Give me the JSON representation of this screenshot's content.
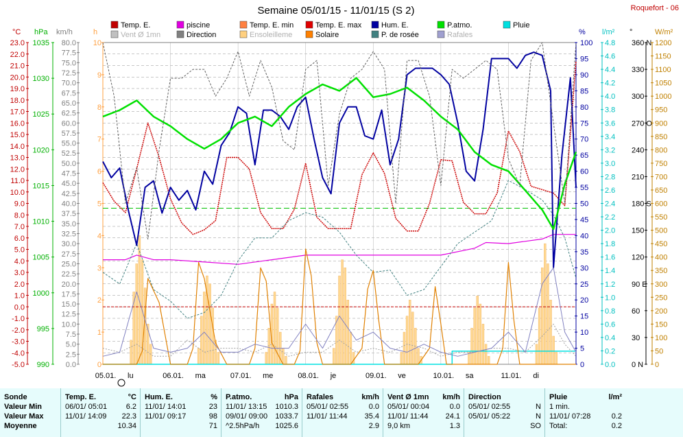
{
  "chart_data": {
    "type": "line",
    "title": "Semaine 05/01/15 - 11/01/15 (S 2)",
    "station": "Roquefort - 06",
    "x_ticks": [
      "05.01.",
      "lu",
      "06.01.",
      "ma",
      "07.01.",
      "me",
      "08.01.",
      "je",
      "09.01.",
      "ve",
      "10.01.",
      "sa",
      "11.01.",
      "di"
    ],
    "axes": {
      "temp": {
        "label": "°C",
        "color": "#c00000",
        "min": -5,
        "max": 23,
        "step": 1,
        "ticks": [
          "23.0",
          "22.0",
          "21.0",
          "20.0",
          "19.0",
          "18.0",
          "17.0",
          "16.0",
          "15.0",
          "14.0",
          "13.0",
          "12.0",
          "11.0",
          "10.0",
          "9.0",
          "8.0",
          "7.0",
          "6.0",
          "5.0",
          "4.0",
          "3.0",
          "2.0",
          "1.0",
          "0.0",
          "-1.0",
          "-2.0",
          "-3.0",
          "-4.0",
          "-5.0"
        ]
      },
      "press": {
        "label": "hPa",
        "color": "#00b000",
        "ticks": [
          "1035",
          "1030",
          "1025",
          "1020",
          "1015",
          "1010",
          "1005",
          "1000",
          "995",
          "990"
        ]
      },
      "wind": {
        "label": "km/h",
        "color": "#808080",
        "ticks": [
          "80.0",
          "77.5",
          "75.0",
          "72.5",
          "70.0",
          "67.5",
          "65.0",
          "62.5",
          "60.0",
          "57.5",
          "55.0",
          "52.5",
          "50.0",
          "47.5",
          "45.0",
          "42.5",
          "40.0",
          "37.5",
          "35.0",
          "32.5",
          "30.0",
          "27.5",
          "25.0",
          "22.5",
          "20.0",
          "17.5",
          "15.0",
          "12.5",
          "10.0",
          "7.5",
          "5.0",
          "2.5",
          "0.0"
        ]
      },
      "sun": {
        "label": "h",
        "color": "#ffa040",
        "ticks": [
          "10",
          "9",
          "8",
          "7",
          "6",
          "5",
          "4",
          "3",
          "2",
          "1",
          "0"
        ]
      },
      "hum": {
        "label": "%",
        "color": "#0000a0",
        "ticks": [
          "100",
          "95",
          "90",
          "85",
          "80",
          "75",
          "70",
          "65",
          "60",
          "55",
          "50",
          "45",
          "40",
          "35",
          "30",
          "25",
          "20",
          "15",
          "10",
          "5",
          "0"
        ]
      },
      "rain": {
        "label": "l/m²",
        "color": "#00c0c0",
        "ticks": [
          "4.8",
          "4.6",
          "4.4",
          "4.2",
          "4.0",
          "3.8",
          "3.6",
          "3.4",
          "3.2",
          "3.0",
          "2.8",
          "2.6",
          "2.4",
          "2.2",
          "2.0",
          "1.8",
          "1.6",
          "1.4",
          "1.2",
          "1.0",
          "0.8",
          "0.6",
          "0.4",
          "0.2",
          "0.0"
        ]
      },
      "dir": {
        "label": "°",
        "color": "#000000",
        "ticks": [
          "360 N",
          "330",
          "300",
          "270 O",
          "240",
          "210",
          "180 S",
          "150",
          "120",
          "90 E",
          "60",
          "30",
          "0 N"
        ]
      },
      "solar": {
        "label": "W/m²",
        "color": "#c08000",
        "ticks": [
          "1200",
          "1150",
          "1100",
          "1050",
          "1000",
          "950",
          "900",
          "850",
          "800",
          "750",
          "700",
          "650",
          "600",
          "550",
          "500",
          "450",
          "400",
          "350",
          "300",
          "250",
          "200",
          "150",
          "100",
          "50",
          "0"
        ]
      }
    },
    "legend": [
      {
        "name": "Temp. E.",
        "color": "#c00000"
      },
      {
        "name": "piscine",
        "color": "#e000e0"
      },
      {
        "name": "Temp. E. min",
        "color": "#ff8040"
      },
      {
        "name": "Temp. E. max",
        "color": "#e00000"
      },
      {
        "name": "Hum. E.",
        "color": "#0000a0"
      },
      {
        "name": "P.atmo.",
        "color": "#00e000"
      },
      {
        "name": "Pluie",
        "color": "#00e0e0"
      },
      {
        "name": "Vent Ø 1mn",
        "color": "#c0c0c0"
      },
      {
        "name": "Direction",
        "color": "#808080"
      },
      {
        "name": "Ensoleilleme",
        "color": "#ffd080"
      },
      {
        "name": "Solaire",
        "color": "#ff8000"
      },
      {
        "name": "P. de rosée",
        "color": "#408080"
      },
      {
        "name": "Rafales",
        "color": "#a0a0d0"
      }
    ],
    "series": [
      {
        "name": "Temp. E.",
        "axis": "temp",
        "color": "#cc0000",
        "dash": "2,1",
        "width": 1.5,
        "x": [
          0,
          4,
          8,
          12,
          16,
          20,
          24,
          28,
          32,
          36,
          40,
          44,
          48,
          52,
          56,
          60,
          64,
          68,
          72,
          76,
          80,
          84,
          88,
          92,
          96,
          100,
          104,
          108,
          112,
          116,
          120,
          124,
          128,
          132,
          136,
          140,
          144,
          148,
          152,
          156,
          160,
          164,
          168
        ],
        "y": [
          10.8,
          9.2,
          8.2,
          12,
          16,
          13,
          9.4,
          7.3,
          6.3,
          6.7,
          7.5,
          13,
          13,
          12,
          8.2,
          6.8,
          6.8,
          8.5,
          12.5,
          7.8,
          6.8,
          6.8,
          6.8,
          11.5,
          13.4,
          11.6,
          7.7,
          6.6,
          6.6,
          9,
          12.8,
          12.7,
          9.1,
          8.1,
          8.1,
          9.9,
          15.3,
          13.5,
          10.5,
          10.2,
          9.9,
          8.8,
          21.4
        ]
      },
      {
        "name": "piscine",
        "axis": "temp",
        "color": "#e000e0",
        "width": 1.2,
        "x": [
          0,
          8,
          12,
          18,
          24,
          36,
          48,
          60,
          72,
          84,
          96,
          108,
          120,
          132,
          136,
          144,
          156,
          160,
          168
        ],
        "y": [
          4.1,
          4.1,
          4.5,
          4.1,
          4.1,
          3.9,
          3.7,
          4.1,
          4.5,
          4.5,
          4.5,
          4.5,
          4.5,
          5.1,
          5.6,
          5.5,
          5.9,
          6.3,
          6.3
        ]
      },
      {
        "name": "P. de rosée",
        "axis": "temp",
        "color": "#408080",
        "dash": "3,2",
        "width": 1,
        "x": [
          0,
          6,
          12,
          18,
          24,
          30,
          36,
          42,
          48,
          54,
          60,
          66,
          72,
          78,
          84,
          90,
          96,
          102,
          108,
          114,
          120,
          126,
          132,
          138,
          144,
          150,
          156,
          160,
          164,
          168
        ],
        "y": [
          3,
          2,
          5.5,
          1.5,
          0.5,
          -1,
          -0.5,
          1,
          4,
          6,
          6,
          7.5,
          8.2,
          7.8,
          6.5,
          4.5,
          3,
          3.2,
          1,
          1.5,
          3.5,
          5.5,
          6.5,
          7.5,
          11,
          10.2,
          9.3,
          8,
          6,
          2.5
        ]
      },
      {
        "name": "Hum. E.",
        "axis": "hum",
        "color": "#0000a0",
        "width": 2,
        "x": [
          0,
          3,
          6,
          9,
          12,
          15,
          18,
          21,
          24,
          27,
          30,
          33,
          36,
          39,
          42,
          45,
          48,
          51,
          54,
          57,
          60,
          63,
          66,
          69,
          72,
          75,
          78,
          81,
          84,
          87,
          90,
          93,
          96,
          99,
          102,
          105,
          108,
          111,
          114,
          117,
          120,
          123,
          126,
          129,
          132,
          135,
          138,
          141,
          144,
          147,
          150,
          153,
          156,
          159,
          160,
          163,
          166,
          168
        ],
        "y": [
          63,
          58,
          61,
          48,
          37,
          55,
          57,
          47,
          55,
          51,
          54,
          48,
          60,
          56,
          68,
          72,
          80,
          78,
          62,
          79,
          79,
          77,
          73,
          80,
          83,
          70,
          58,
          53,
          75,
          80,
          80,
          71,
          70,
          79,
          62,
          70,
          90,
          92,
          92,
          92,
          90,
          87,
          75,
          60,
          57,
          73,
          95,
          95,
          95,
          92,
          96,
          97,
          96,
          85,
          30,
          65,
          89,
          55
        ]
      },
      {
        "name": "P.atmo.",
        "axis": "hum",
        "color": "#00e000",
        "width": 2.5,
        "x": [
          0,
          6,
          12,
          18,
          24,
          30,
          36,
          42,
          48,
          54,
          60,
          66,
          72,
          78,
          84,
          90,
          96,
          102,
          108,
          114,
          120,
          126,
          132,
          138,
          144,
          150,
          156,
          160,
          164,
          168
        ],
        "y": [
          77,
          79,
          82,
          77,
          74,
          70,
          67,
          70,
          75,
          77,
          74,
          80,
          84,
          87,
          85,
          89,
          83,
          84,
          86,
          82,
          77,
          73,
          66,
          62,
          60,
          54,
          48,
          42,
          56,
          66
        ]
      },
      {
        "name": "Pluie",
        "axis": "rain",
        "color": "#00e0e0",
        "width": 1.5,
        "x": [
          0,
          124,
          124,
          168
        ],
        "y": [
          0,
          0,
          0.2,
          0.2
        ]
      },
      {
        "name": "Vent Ø 1mn",
        "axis": "wind",
        "color": "#a0a0a0",
        "dash": "2,2",
        "width": 1,
        "x": [
          0,
          6,
          12,
          18,
          24,
          30,
          36,
          42,
          48,
          54,
          60,
          66,
          72,
          78,
          84,
          90,
          96,
          102,
          108,
          114,
          120,
          126,
          132,
          138,
          144,
          150,
          156,
          160,
          164,
          168
        ],
        "y": [
          4,
          3,
          5,
          2,
          2,
          6,
          3,
          4,
          4,
          3,
          5,
          2,
          3,
          3,
          6,
          3,
          4,
          3,
          5,
          4,
          2,
          3,
          3,
          4,
          4,
          3,
          7,
          10,
          5,
          2
        ]
      },
      {
        "name": "Direction",
        "axis": "dir",
        "color": "#606060",
        "dash": "3,2",
        "width": 1,
        "x": [
          0,
          4,
          8,
          12,
          16,
          20,
          24,
          28,
          32,
          36,
          40,
          44,
          48,
          52,
          56,
          60,
          64,
          68,
          72,
          76,
          80,
          84,
          88,
          92,
          96,
          100,
          104,
          108,
          112,
          116,
          120,
          124,
          128,
          132,
          136,
          140,
          144,
          148,
          152,
          156,
          160,
          164,
          168
        ],
        "y": [
          360,
          300,
          180,
          220,
          140,
          240,
          320,
          320,
          330,
          330,
          300,
          320,
          350,
          300,
          340,
          310,
          250,
          240,
          330,
          340,
          200,
          280,
          320,
          330,
          350,
          330,
          180,
          340,
          340,
          300,
          200,
          330,
          320,
          330,
          340,
          330,
          230,
          200,
          340,
          360,
          270,
          180,
          360
        ]
      },
      {
        "name": "Solaire",
        "axis": "solar",
        "color": "#e08000",
        "width": 1.2,
        "x": [
          0,
          4,
          8,
          10,
          12,
          14,
          16,
          20,
          24,
          26,
          28,
          30,
          32,
          34,
          36,
          40,
          44,
          48,
          50,
          52,
          54,
          56,
          58,
          60,
          64,
          68,
          70,
          72,
          74,
          76,
          78,
          80,
          84,
          88,
          92,
          94,
          96,
          98,
          100,
          102,
          104,
          108,
          112,
          116,
          118,
          120,
          122,
          124,
          126,
          128,
          132,
          136,
          140,
          142,
          144,
          146,
          148,
          150,
          152,
          168
        ],
        "y": [
          0,
          0,
          0,
          0,
          0,
          50,
          320,
          230,
          0,
          0,
          0,
          0,
          60,
          380,
          320,
          80,
          0,
          0,
          0,
          0,
          60,
          360,
          310,
          80,
          0,
          0,
          50,
          430,
          330,
          80,
          0,
          0,
          0,
          0,
          60,
          280,
          350,
          160,
          0,
          0,
          0,
          0,
          0,
          60,
          290,
          150,
          0,
          0,
          0,
          0,
          0,
          0,
          0,
          60,
          380,
          160,
          0,
          0,
          0,
          0
        ]
      },
      {
        "name": "Rafales",
        "axis": "wind",
        "color": "#8080c0",
        "width": 1,
        "x": [
          0,
          6,
          12,
          18,
          24,
          30,
          36,
          42,
          48,
          54,
          60,
          66,
          72,
          78,
          84,
          90,
          96,
          102,
          108,
          114,
          120,
          126,
          132,
          138,
          144,
          150,
          156,
          160,
          164,
          168
        ],
        "y": [
          2,
          3,
          18,
          4,
          3,
          4,
          8,
          3,
          3,
          5,
          4,
          4,
          10,
          4,
          12,
          6,
          8,
          4,
          3,
          5,
          3,
          2,
          3,
          4,
          8,
          3,
          20,
          24,
          8,
          3
        ]
      }
    ],
    "sun_bars": [
      {
        "day": 0,
        "peaks": [
          6,
          18,
          25,
          32,
          26,
          19,
          10,
          5
        ]
      },
      {
        "day": 1,
        "peaks": [
          4,
          12,
          18,
          22,
          20,
          14,
          6,
          3
        ]
      },
      {
        "day": 2,
        "peaks": [
          3,
          9,
          15,
          18,
          14,
          8,
          4,
          2
        ]
      },
      {
        "day": 3,
        "peaks": [
          4,
          12,
          22,
          26,
          24,
          16,
          8,
          3
        ]
      },
      {
        "day": 4,
        "peaks": [
          3,
          8,
          12,
          16,
          13,
          9,
          4,
          2
        ]
      },
      {
        "day": 5,
        "peaks": [
          3,
          9,
          14,
          17,
          15,
          10,
          5,
          2
        ]
      },
      {
        "day": 6,
        "peaks": [
          5,
          14,
          24,
          30,
          25,
          16,
          7,
          3
        ]
      }
    ],
    "ref_line": {
      "axis": "temp",
      "value": 0,
      "color": "#c00000"
    },
    "ref_line2": {
      "axis": "hum",
      "value": 48.5,
      "color": "#00c000"
    }
  },
  "stats": {
    "sonde": {
      "title": "Sonde",
      "min": "Valeur Min",
      "max": "Valeur Max",
      "moy": "Moyenne"
    },
    "temp": {
      "title": "Temp. E.",
      "unit": "°C",
      "min_date": "06/01/ 05:01",
      "min_val": "6.2",
      "max_date": "11/01/ 14:09",
      "max_val": "22.3",
      "moy_val": "10.34"
    },
    "hum": {
      "title": "Hum. E.",
      "unit": "%",
      "min_date": "11/01/ 14:01",
      "min_val": "23",
      "max_date": "11/01/ 09:17",
      "max_val": "98",
      "moy_val": "71"
    },
    "press": {
      "title": "P.atmo.",
      "unit": "hPa",
      "min_date": "11/01/ 13:15",
      "min_val": "1010.3",
      "max_date": "09/01/ 09:00",
      "max_val": "1033.7",
      "moy_label": "^2.5hPa/h",
      "moy_val": "1025.6"
    },
    "rafales": {
      "title": "Rafales",
      "unit": "km/h",
      "min_date": "05/01/ 02:55",
      "min_val": "0.0",
      "max_date": "11/01/ 11:44",
      "max_val": "35.4",
      "moy_val": "2.9"
    },
    "vent": {
      "title": "Vent Ø 1mn",
      "unit": "km/h",
      "min_date": "05/01/ 00:04",
      "min_val": "0.0",
      "max_date": "11/01/ 11:44",
      "max_val": "24.1",
      "moy_label": "9,0 km",
      "moy_val": "1.3"
    },
    "dir": {
      "title": "Direction",
      "min_date": "05/01/ 02:55",
      "min_val": "N",
      "max_date": "05/01/ 05:22",
      "max_val": "N",
      "moy_val": "SO"
    },
    "pluie": {
      "title": "Pluie",
      "unit": "l/m²",
      "min_date": "1 min.",
      "min_val": "",
      "max_date": "11/01/ 07:28",
      "max_val": "0.2",
      "moy_label": "Total:",
      "moy_val": "0.2"
    }
  }
}
